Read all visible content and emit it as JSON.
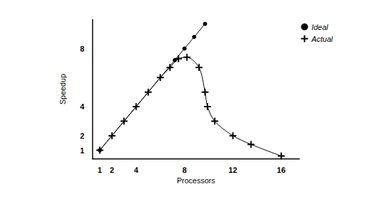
{
  "chart_data": {
    "type": "line",
    "x_label": "Processors",
    "y_label": "Speedup",
    "xlim": [
      0.4,
      17.5
    ],
    "ylim": [
      0.4,
      10
    ],
    "xticks": [
      1,
      2,
      4,
      8,
      12,
      16
    ],
    "yticks": [
      1,
      2,
      4,
      8
    ],
    "grid": false,
    "legend": "top-right",
    "series": [
      {
        "name": "Ideal",
        "color": "#000000",
        "marker": "circle",
        "line_style": "solid",
        "x": [
          1,
          7.2,
          8,
          8.8,
          9.7
        ],
        "values": [
          1,
          7.2,
          8,
          8.8,
          9.7
        ]
      },
      {
        "name": "Actual",
        "color": "#000000",
        "marker": "cross",
        "line_style": "solid",
        "x": [
          1,
          2,
          3,
          4,
          5,
          6,
          6.8,
          7.5,
          8.2,
          9.2,
          9.7,
          9.9,
          10.5,
          12,
          13.5,
          16
        ],
        "values": [
          1,
          2,
          3,
          4,
          5,
          6,
          6.7,
          7.3,
          7.4,
          6.7,
          5,
          4,
          3,
          2,
          1.4,
          0.6
        ]
      }
    ]
  }
}
